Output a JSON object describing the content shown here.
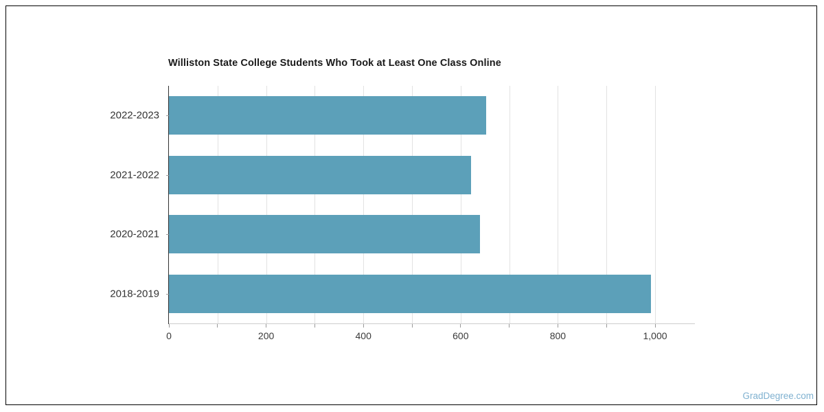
{
  "title": "Williston State College Students Who Took at Least One Class Online",
  "watermark": "GradDegree.com",
  "colors": {
    "bar": "#5ca0b9",
    "gridline": "#e2e2e2",
    "y_axis_line": "#303030",
    "x_axis_line": "#cccccc",
    "tick": "#999999",
    "tick_label": "#3a3a3a",
    "category_label": "#333333",
    "title": "#1a1a1a",
    "watermark": "#7fb1d0",
    "frame_border": "#000000"
  },
  "chart_data": {
    "type": "bar",
    "orientation": "horizontal",
    "title": "Williston State College Students Who Took at Least One Class Online",
    "categories": [
      "2022-2023",
      "2021-2022",
      "2020-2021",
      "2018-2019"
    ],
    "values": [
      652,
      622,
      640,
      992
    ],
    "xlabel": "",
    "ylabel": "",
    "xlim": [
      0,
      1000
    ],
    "gridline_step": 100,
    "minor_tick_step": 100,
    "x_tick_values": [
      0,
      200,
      400,
      600,
      800,
      1000
    ],
    "x_tick_labels": [
      "0",
      "200",
      "400",
      "600",
      "800",
      "1,000"
    ],
    "grid": true,
    "legend": "none",
    "bar_color": "#5ca0b9"
  }
}
